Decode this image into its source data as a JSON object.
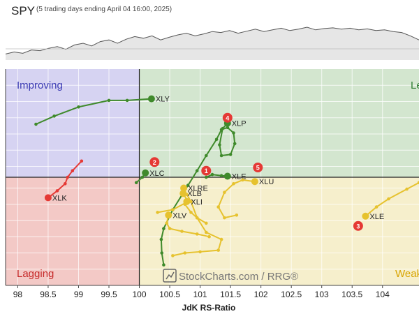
{
  "header": {
    "symbol": "SPY",
    "subtitle": "(5 trading days ending April 04 16:00, 2025)"
  },
  "watermark": "StockCharts.com / RRG®",
  "colors": {
    "improving": "#d6d3f2",
    "leading": "#d3e6cf",
    "lagging": "#f3c9c6",
    "weakening": "#f6efcc",
    "improving_label": "#3b3bb3",
    "leading_label": "#2e7d32",
    "lagging_label": "#c62828",
    "weakening_label": "#d8a400",
    "leading_series": "#3f8a2b",
    "lagging_series": "#e53935",
    "weakening_series": "#e6c22e",
    "marker_badge": "#e53935"
  },
  "chart_data": {
    "type": "scatter",
    "title": "SPY",
    "subtitle": "(5 trading days ending April 04 16:00, 2025)",
    "xlabel": "JdK RS-Ratio",
    "ylabel": "",
    "xlim": [
      97.8,
      104.6
    ],
    "ylim": [
      98.0,
      102.0
    ],
    "x_ticks": [
      98,
      98.5,
      99,
      99.5,
      100,
      100.5,
      101,
      101.5,
      102,
      102.5,
      103,
      103.5,
      104
    ],
    "x_tick_labels": [
      "98",
      "98.5",
      "99",
      "99.5",
      "100",
      "100.5",
      "101",
      "101.5",
      "102",
      "102.5",
      "103",
      "103.5",
      "104"
    ],
    "y_grid": [
      98.3,
      98.6,
      98.9,
      99.2,
      99.5,
      99.8,
      100.0,
      100.2,
      100.5,
      100.8,
      101.1,
      101.4,
      101.7
    ],
    "quadrants": [
      {
        "name": "Improving",
        "position": "top-left"
      },
      {
        "name": "Leading",
        "position": "top-right"
      },
      {
        "name": "Lagging",
        "position": "bottom-left"
      },
      {
        "name": "Weakening",
        "position": "bottom-right"
      }
    ],
    "quadrant_labels_visible": [
      "Improving",
      "Le",
      "Lagging",
      "Weak"
    ],
    "series": [
      {
        "name": "XLY",
        "color": "leading_series",
        "points": [
          [
            98.3,
            100.98
          ],
          [
            98.6,
            101.13
          ],
          [
            99.0,
            101.3
          ],
          [
            99.5,
            101.42
          ],
          [
            99.8,
            101.42
          ],
          [
            100.2,
            101.45
          ]
        ]
      },
      {
        "name": "XLC",
        "color": "leading_series",
        "points": [
          [
            99.95,
            99.9
          ],
          [
            100.05,
            100.0
          ],
          [
            100.1,
            100.08
          ]
        ]
      },
      {
        "name": "XLP",
        "color": "leading_series",
        "points": [
          [
            100.4,
            98.38
          ],
          [
            100.37,
            98.6
          ],
          [
            100.36,
            98.85
          ],
          [
            100.4,
            99.05
          ],
          [
            100.55,
            99.4
          ],
          [
            100.8,
            99.85
          ],
          [
            100.95,
            100.12
          ],
          [
            101.1,
            100.4
          ],
          [
            101.27,
            100.7
          ],
          [
            101.35,
            100.88
          ],
          [
            101.45,
            100.92
          ],
          [
            101.55,
            100.82
          ],
          [
            101.57,
            100.62
          ],
          [
            101.5,
            100.42
          ],
          [
            101.35,
            100.4
          ],
          [
            101.32,
            100.6
          ],
          [
            101.37,
            100.9
          ],
          [
            101.45,
            101.0
          ]
        ]
      },
      {
        "name": "XLE",
        "color": "leading_series",
        "points": [
          [
            101.1,
            100.0
          ],
          [
            101.2,
            100.05
          ],
          [
            101.35,
            100.03
          ],
          [
            101.45,
            100.02
          ]
        ]
      },
      {
        "name": "XLK",
        "color": "lagging_series",
        "points": [
          [
            99.05,
            100.3
          ],
          [
            98.9,
            100.12
          ],
          [
            98.82,
            100.0
          ],
          [
            98.78,
            99.88
          ],
          [
            98.65,
            99.75
          ],
          [
            98.5,
            99.62
          ]
        ]
      },
      {
        "name": "XLU",
        "color": "weakening_series",
        "points": [
          [
            101.6,
            99.3
          ],
          [
            101.4,
            99.25
          ],
          [
            101.3,
            99.45
          ],
          [
            101.4,
            99.72
          ],
          [
            101.55,
            99.88
          ],
          [
            101.7,
            99.95
          ],
          [
            101.9,
            99.92
          ]
        ]
      },
      {
        "name": "XLE",
        "color": "weakening_series",
        "points": [
          [
            104.6,
            99.9
          ],
          [
            104.4,
            99.78
          ],
          [
            104.1,
            99.6
          ],
          [
            103.9,
            99.45
          ],
          [
            103.72,
            99.28
          ]
        ]
      },
      {
        "name": "XLRE",
        "color": "weakening_series",
        "points": [
          [
            100.55,
            98.55
          ],
          [
            100.75,
            98.6
          ],
          [
            101.0,
            98.62
          ],
          [
            101.3,
            98.65
          ],
          [
            101.35,
            98.85
          ],
          [
            101.1,
            98.98
          ],
          [
            100.95,
            99.25
          ],
          [
            100.85,
            99.55
          ],
          [
            100.78,
            99.68
          ],
          [
            100.73,
            99.8
          ]
        ]
      },
      {
        "name": "XLB",
        "color": "weakening_series",
        "points": [
          [
            100.3,
            99.35
          ],
          [
            100.55,
            99.4
          ],
          [
            100.8,
            99.55
          ],
          [
            100.72,
            99.7
          ]
        ]
      },
      {
        "name": "XLI",
        "color": "weakening_series",
        "points": [
          [
            101.1,
            99.15
          ],
          [
            100.95,
            99.25
          ],
          [
            100.85,
            99.35
          ],
          [
            100.75,
            99.5
          ],
          [
            100.78,
            99.55
          ]
        ]
      },
      {
        "name": "XLV",
        "color": "weakening_series",
        "points": [
          [
            101.15,
            98.9
          ],
          [
            100.95,
            98.95
          ],
          [
            100.7,
            99.0
          ],
          [
            100.5,
            99.05
          ],
          [
            100.45,
            99.15
          ],
          [
            100.48,
            99.3
          ]
        ]
      }
    ],
    "badges": [
      {
        "number": "1",
        "x": 101.1,
        "y": 100.12
      },
      {
        "number": "2",
        "x": 100.25,
        "y": 100.28
      },
      {
        "number": "3",
        "x": 103.6,
        "y": 99.1
      },
      {
        "number": "4",
        "x": 101.45,
        "y": 101.1
      },
      {
        "number": "5",
        "x": 101.95,
        "y": 100.18
      }
    ],
    "benchmark_line": [
      0.18,
      0.24,
      0.2,
      0.3,
      0.28,
      0.35,
      0.4,
      0.32,
      0.45,
      0.5,
      0.42,
      0.55,
      0.6,
      0.5,
      0.62,
      0.7,
      0.65,
      0.72,
      0.6,
      0.68,
      0.75,
      0.8,
      0.72,
      0.78,
      0.85,
      0.82,
      0.88,
      0.8,
      0.86,
      0.92,
      0.85,
      0.9,
      0.95,
      0.88,
      0.92,
      0.98,
      0.9,
      0.94,
      0.96,
      0.92,
      0.95,
      0.9,
      0.93,
      0.88,
      0.9,
      0.85,
      0.82,
      0.72,
      0.6
    ]
  }
}
